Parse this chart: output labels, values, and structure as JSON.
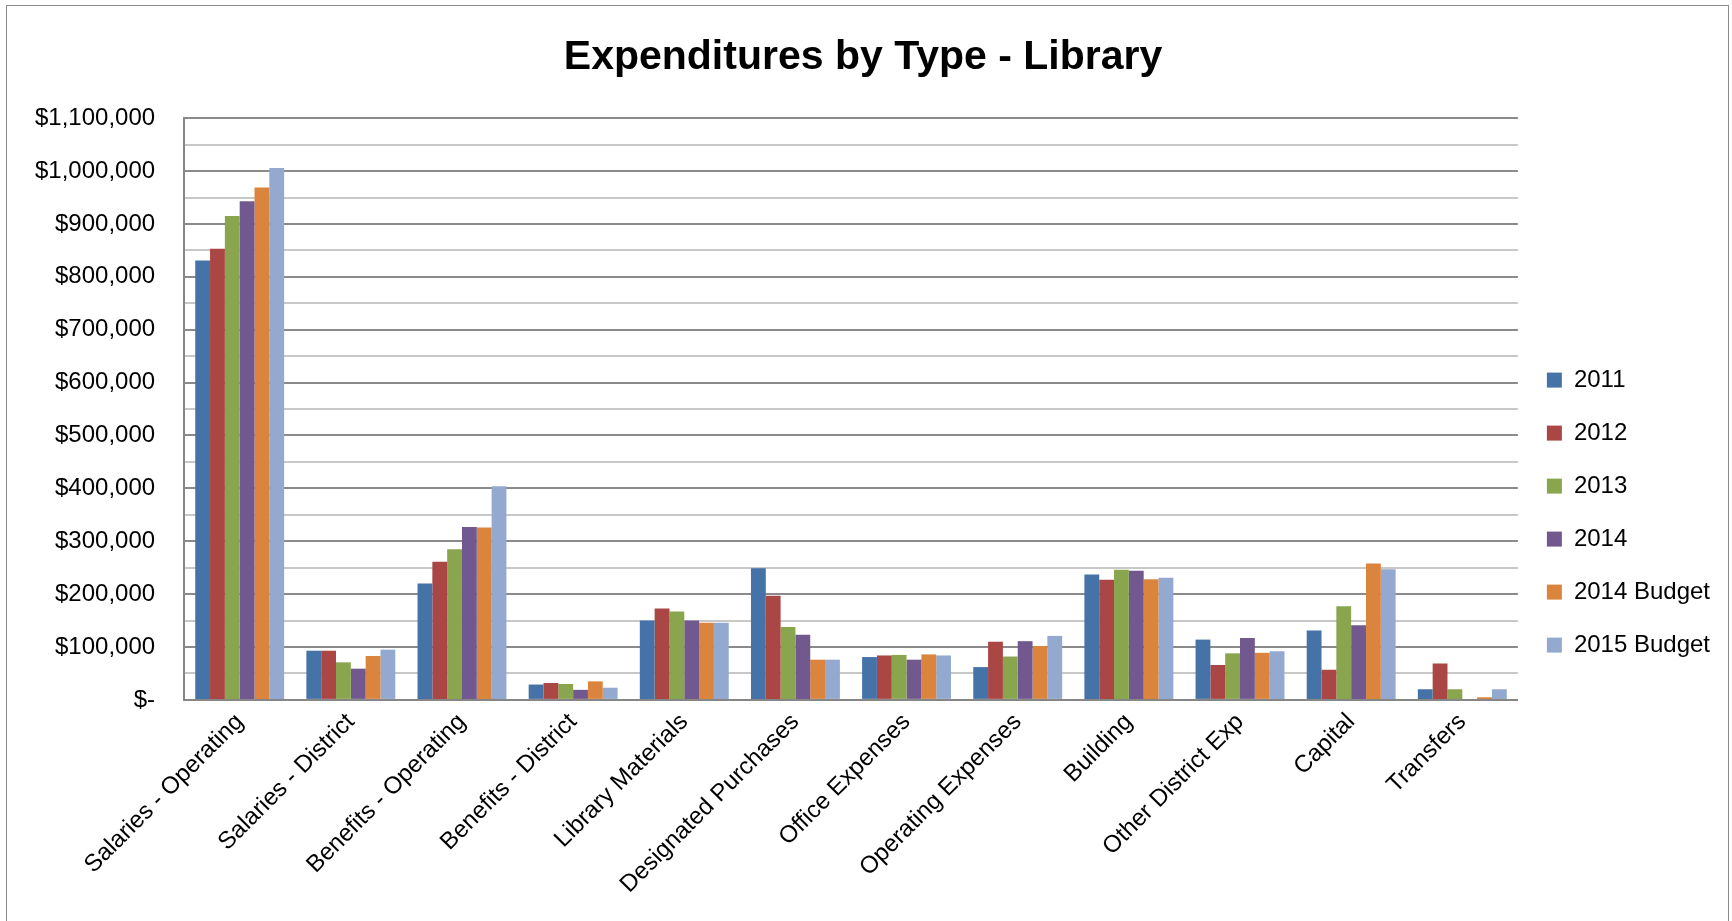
{
  "chart_data": {
    "type": "bar",
    "title": "Expenditures by Type - Library",
    "categories": [
      "Salaries - Operating",
      "Salaries - District",
      "Benefits - Operating",
      "Benefits - District",
      "Library Materials",
      "Designated Purchases",
      "Office Expenses",
      "Operating Expenses",
      "Building",
      "Other District Exp",
      "Capital",
      "Transfers"
    ],
    "series": [
      {
        "name": "2011",
        "color": "#4572a7",
        "values": [
          831000,
          93000,
          220000,
          29000,
          150000,
          249000,
          81000,
          62000,
          237000,
          114000,
          131000,
          20000
        ]
      },
      {
        "name": "2012",
        "color": "#aa4643",
        "values": [
          853000,
          93000,
          261000,
          32000,
          173000,
          197000,
          84000,
          110000,
          227000,
          66000,
          57000,
          69000
        ]
      },
      {
        "name": "2013",
        "color": "#89a54e",
        "values": [
          915000,
          71000,
          285000,
          30000,
          167000,
          138000,
          85000,
          82000,
          246000,
          88000,
          177000,
          20000
        ]
      },
      {
        "name": "2014",
        "color": "#71588f",
        "values": [
          943000,
          59000,
          327000,
          19000,
          150000,
          123000,
          76000,
          111000,
          244000,
          117000,
          141000,
          0
        ]
      },
      {
        "name": "2014 Budget",
        "color": "#db843d",
        "values": [
          969000,
          83000,
          326000,
          35000,
          146000,
          76000,
          86000,
          102000,
          228000,
          89000,
          258000,
          5000
        ]
      },
      {
        "name": "2015 Budget",
        "color": "#93a9cf",
        "values": [
          1006000,
          95000,
          404000,
          23000,
          146000,
          76000,
          84000,
          121000,
          231000,
          92000,
          247000,
          20000
        ]
      }
    ],
    "ylim": [
      0,
      1100000
    ],
    "yticks": [
      {
        "value": 0,
        "label": "$-"
      },
      {
        "value": 50000,
        "label": null
      },
      {
        "value": 100000,
        "label": "$100,000"
      },
      {
        "value": 150000,
        "label": null
      },
      {
        "value": 200000,
        "label": "$200,000"
      },
      {
        "value": 250000,
        "label": null
      },
      {
        "value": 300000,
        "label": "$300,000"
      },
      {
        "value": 350000,
        "label": null
      },
      {
        "value": 400000,
        "label": "$400,000"
      },
      {
        "value": 450000,
        "label": null
      },
      {
        "value": 500000,
        "label": "$500,000"
      },
      {
        "value": 550000,
        "label": null
      },
      {
        "value": 600000,
        "label": "$600,000"
      },
      {
        "value": 650000,
        "label": null
      },
      {
        "value": 700000,
        "label": "$700,000"
      },
      {
        "value": 750000,
        "label": null
      },
      {
        "value": 800000,
        "label": "$800,000"
      },
      {
        "value": 850000,
        "label": null
      },
      {
        "value": 900000,
        "label": "$900,000"
      },
      {
        "value": 950000,
        "label": null
      },
      {
        "value": 1000000,
        "label": "$1,000,000"
      },
      {
        "value": 1050000,
        "label": null
      },
      {
        "value": 1100000,
        "label": "$1,100,000"
      }
    ],
    "grid": "y",
    "legend": "right"
  }
}
